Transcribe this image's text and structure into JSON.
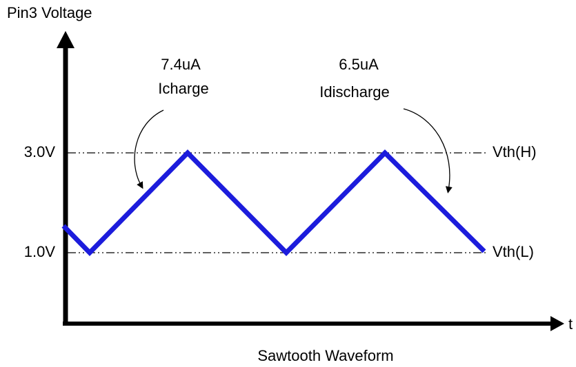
{
  "y_axis_label": "Pin3 Voltage",
  "x_axis_label": "t",
  "title": "Sawtooth Waveform",
  "levels": [
    {
      "label": "3.0V",
      "name": "Vth(H)"
    },
    {
      "label": "1.0V",
      "name": "Vth(L)"
    }
  ],
  "annotations": [
    {
      "current": "7.4uA",
      "label": "Icharge"
    },
    {
      "current": "6.5uA",
      "label": "Idischarge"
    }
  ]
}
